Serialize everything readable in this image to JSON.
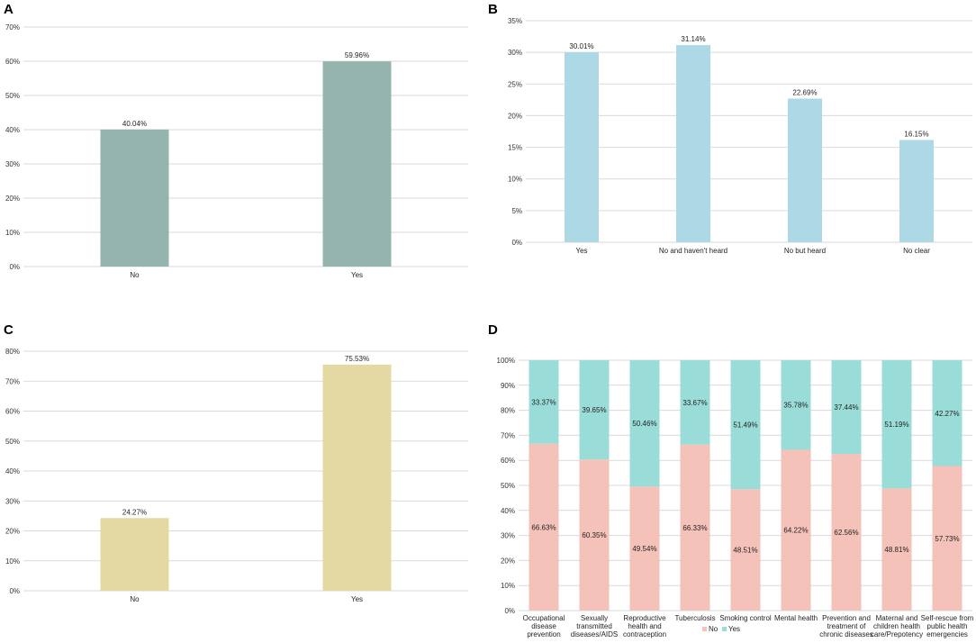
{
  "colors": {
    "panel_a_bar": "#95b4ae",
    "panel_b_bar": "#add8e6",
    "panel_c_bar": "#e4d8a3",
    "panel_d_no": "#f4c2b8",
    "panel_d_yes": "#9addd8",
    "grid": "#d9d9d9"
  },
  "chart_data": [
    {
      "panel": "A",
      "type": "bar",
      "categories": [
        "No",
        "Yes"
      ],
      "values": [
        40.04,
        59.96
      ],
      "data_labels": [
        "40.04%",
        "59.96%"
      ],
      "ylim": [
        0,
        70
      ],
      "yticks": [
        "0%",
        "10%",
        "20%",
        "30%",
        "40%",
        "50%",
        "60%",
        "70%"
      ],
      "grid": true
    },
    {
      "panel": "B",
      "type": "bar",
      "categories": [
        "Yes",
        "No and haven't heard",
        "No but heard",
        "No clear"
      ],
      "values": [
        30.01,
        31.14,
        22.69,
        16.15
      ],
      "data_labels": [
        "30.01%",
        "31.14%",
        "22.69%",
        "16.15%"
      ],
      "ylim": [
        0,
        35
      ],
      "yticks": [
        "0%",
        "5%",
        "10%",
        "15%",
        "20%",
        "25%",
        "30%",
        "35%"
      ],
      "grid": true
    },
    {
      "panel": "C",
      "type": "bar",
      "categories": [
        "No",
        "Yes"
      ],
      "values": [
        24.27,
        75.53
      ],
      "data_labels": [
        "24.27%",
        "75.53%"
      ],
      "ylim": [
        0,
        80
      ],
      "yticks": [
        "0%",
        "10%",
        "20%",
        "30%",
        "40%",
        "50%",
        "60%",
        "70%",
        "80%"
      ],
      "grid": true
    },
    {
      "panel": "D",
      "type": "bar",
      "stacked": true,
      "categories": [
        [
          "Occupational",
          "disease",
          "prevention"
        ],
        [
          "Sexually",
          "transmitted",
          "diseases/AIDS"
        ],
        [
          "Reproductive",
          "health and",
          "contraception"
        ],
        [
          "Tuberculosis"
        ],
        [
          "Smoking control"
        ],
        [
          "Mental health"
        ],
        [
          "Prevention and",
          "treatment of",
          "chronic diseases"
        ],
        [
          "Maternal and",
          "children health",
          "care/Prepotency"
        ],
        [
          "Self-rescue from",
          "public health",
          "emergencies"
        ]
      ],
      "series": [
        {
          "name": "No",
          "values": [
            66.63,
            60.35,
            49.54,
            66.33,
            48.51,
            64.22,
            62.56,
            48.81,
            57.73
          ],
          "data_labels": [
            "66.63%",
            "60.35%",
            "49.54%",
            "66.33%",
            "48.51%",
            "64.22%",
            "62.56%",
            "48.81%",
            "57.73%"
          ]
        },
        {
          "name": "Yes",
          "values": [
            33.37,
            39.65,
            50.46,
            33.67,
            51.49,
            35.78,
            37.44,
            51.19,
            42.27
          ],
          "data_labels": [
            "33.37%",
            "39.65%",
            "50.46%",
            "33.67%",
            "51.49%",
            "35.78%",
            "37.44%",
            "51.19%",
            "42.27%"
          ]
        }
      ],
      "ylim": [
        0,
        100
      ],
      "yticks": [
        "0%",
        "10%",
        "20%",
        "30%",
        "40%",
        "50%",
        "60%",
        "70%",
        "80%",
        "90%",
        "100%"
      ],
      "legend": "bottom",
      "grid": true
    }
  ]
}
